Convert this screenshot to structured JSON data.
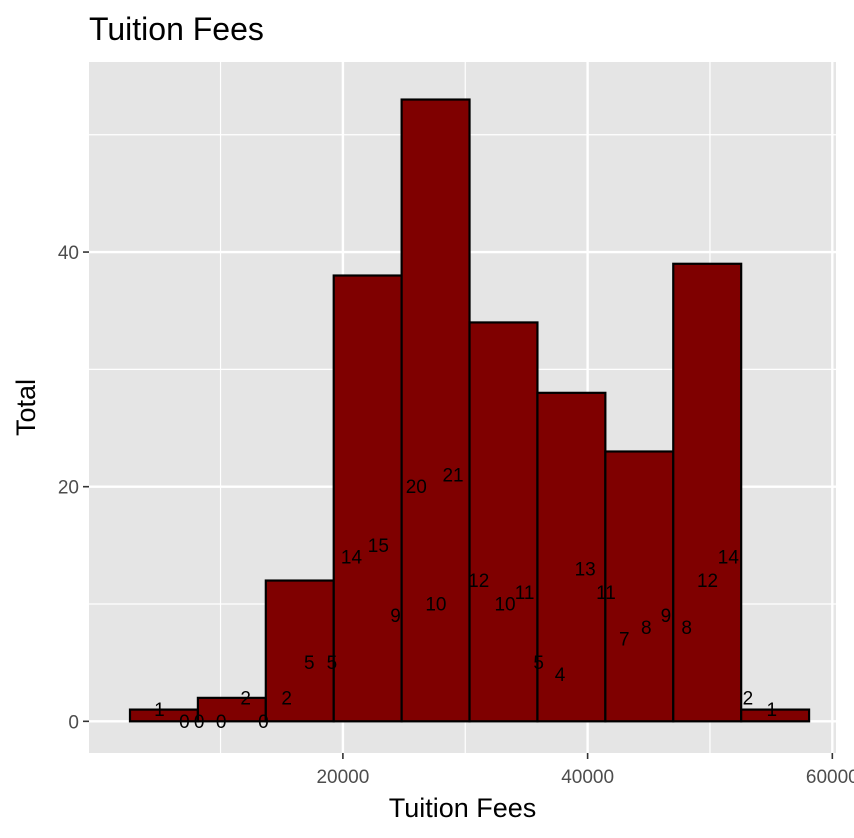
{
  "chart_data": {
    "type": "bar",
    "title": "Tuition Fees",
    "xlabel": "Tuition Fees",
    "ylabel": "Total",
    "xlim": [
      -750,
      60300
    ],
    "ylim": [
      -2.7,
      56.2
    ],
    "x_ticks": [
      20000,
      40000,
      60000
    ],
    "x_tick_labels": [
      "20000",
      "40000",
      "60000"
    ],
    "y_ticks": [
      0,
      20,
      40
    ],
    "y_tick_labels": [
      "0",
      "20",
      "40"
    ],
    "x_minor_ticks": [
      10000,
      30000,
      50000
    ],
    "y_minor_ticks": [
      10,
      30,
      50
    ],
    "grid": true,
    "legend": "none",
    "colors": {
      "panel_background": "#e5e5e5",
      "grid": "#ffffff",
      "bar_fill": "#7f0000",
      "bar_stroke": "#000000",
      "tick_text": "#4d4d4d",
      "tick_mark": "#333333"
    },
    "bins": [
      {
        "x0": 2600,
        "x1": 8150,
        "count": 1
      },
      {
        "x0": 8150,
        "x1": 13700,
        "count": 2
      },
      {
        "x0": 13700,
        "x1": 19250,
        "count": 12
      },
      {
        "x0": 19250,
        "x1": 24800,
        "count": 38
      },
      {
        "x0": 24800,
        "x1": 30350,
        "count": 53
      },
      {
        "x0": 30350,
        "x1": 35900,
        "count": 34
      },
      {
        "x0": 35900,
        "x1": 41450,
        "count": 28
      },
      {
        "x0": 41450,
        "x1": 47000,
        "count": 23
      },
      {
        "x0": 47000,
        "x1": 52550,
        "count": 39
      },
      {
        "x0": 52550,
        "x1": 58100,
        "count": 1
      }
    ],
    "labels": [
      {
        "x": 5000,
        "y": 1,
        "text": "1"
      },
      {
        "x": 7050,
        "y": 0,
        "text": "0"
      },
      {
        "x": 8250,
        "y": 0,
        "text": "0"
      },
      {
        "x": 10050,
        "y": 0,
        "text": "0"
      },
      {
        "x": 12050,
        "y": 2,
        "text": "2"
      },
      {
        "x": 13500,
        "y": 0,
        "text": "0"
      },
      {
        "x": 15400,
        "y": 2,
        "text": "2"
      },
      {
        "x": 17250,
        "y": 5,
        "text": "5"
      },
      {
        "x": 19100,
        "y": 5,
        "text": "5"
      },
      {
        "x": 20700,
        "y": 14,
        "text": "14"
      },
      {
        "x": 22900,
        "y": 15,
        "text": "15"
      },
      {
        "x": 24300,
        "y": 9,
        "text": "9"
      },
      {
        "x": 26000,
        "y": 20,
        "text": "20"
      },
      {
        "x": 27600,
        "y": 10,
        "text": "10"
      },
      {
        "x": 29000,
        "y": 21,
        "text": "21"
      },
      {
        "x": 31100,
        "y": 12,
        "text": "12"
      },
      {
        "x": 33250,
        "y": 10,
        "text": "10"
      },
      {
        "x": 34850,
        "y": 11,
        "text": "11"
      },
      {
        "x": 36000,
        "y": 5,
        "text": "5"
      },
      {
        "x": 37750,
        "y": 4,
        "text": "4"
      },
      {
        "x": 39800,
        "y": 13,
        "text": "13"
      },
      {
        "x": 41500,
        "y": 11,
        "text": "11"
      },
      {
        "x": 43000,
        "y": 7,
        "text": "7"
      },
      {
        "x": 44800,
        "y": 8,
        "text": "8"
      },
      {
        "x": 46400,
        "y": 9,
        "text": "9"
      },
      {
        "x": 48100,
        "y": 8,
        "text": "8"
      },
      {
        "x": 49800,
        "y": 12,
        "text": "12"
      },
      {
        "x": 51500,
        "y": 14,
        "text": "14"
      },
      {
        "x": 53100,
        "y": 2,
        "text": "2"
      },
      {
        "x": 55050,
        "y": 1,
        "text": "1"
      }
    ]
  }
}
